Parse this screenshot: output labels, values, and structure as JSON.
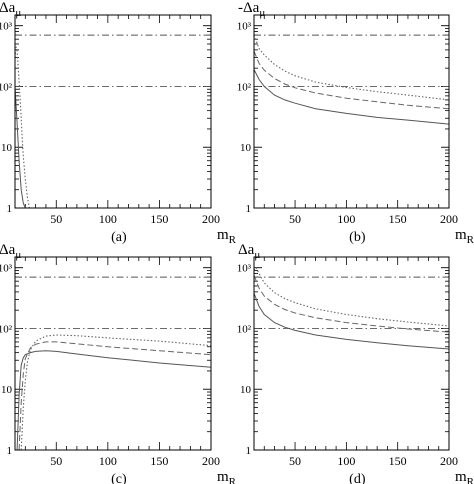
{
  "chart_data": [
    {
      "panel": "(a)",
      "type": "line",
      "ylabel": "Δaμ",
      "xlabel": "mR",
      "xlim": [
        10,
        200
      ],
      "ylim": [
        1,
        1500
      ],
      "yscale": "log",
      "xticks": [
        50,
        100,
        150,
        200
      ],
      "ytick_labels": [
        "1",
        "10",
        "10²",
        "10³"
      ],
      "hlines": [
        100,
        700
      ],
      "series": [
        {
          "style": "solid",
          "x": [
            10,
            12,
            14,
            16,
            18,
            20
          ],
          "y": [
            100,
            25,
            6,
            2,
            1.2,
            1
          ]
        },
        {
          "style": "dotted",
          "x": [
            10,
            11,
            12,
            13,
            14,
            15,
            16,
            17,
            18,
            20,
            22,
            24
          ],
          "y": [
            300,
            450,
            380,
            220,
            120,
            60,
            30,
            14,
            7,
            3,
            1.5,
            1
          ]
        }
      ]
    },
    {
      "panel": "(b)",
      "type": "line",
      "ylabel": "-Δaμ",
      "xlabel": "mR",
      "xlim": [
        10,
        200
      ],
      "ylim": [
        1,
        1500
      ],
      "yscale": "log",
      "xticks": [
        50,
        100,
        150,
        200
      ],
      "ytick_labels": [
        "1",
        "10",
        "10²",
        "10³"
      ],
      "hlines": [
        100,
        700
      ],
      "series": [
        {
          "style": "solid",
          "x": [
            10,
            15,
            20,
            30,
            40,
            50,
            70,
            100,
            130,
            160,
            200
          ],
          "y": [
            190,
            130,
            100,
            72,
            60,
            53,
            43,
            36,
            31,
            28,
            24
          ]
        },
        {
          "style": "dashed",
          "x": [
            10,
            15,
            20,
            30,
            40,
            50,
            70,
            100,
            130,
            160,
            200
          ],
          "y": [
            380,
            240,
            185,
            135,
            110,
            95,
            78,
            64,
            56,
            49,
            43
          ]
        },
        {
          "style": "dotted",
          "x": [
            10,
            15,
            20,
            30,
            40,
            50,
            70,
            100,
            130,
            160,
            200
          ],
          "y": [
            700,
            420,
            330,
            230,
            180,
            150,
            118,
            96,
            82,
            72,
            60
          ]
        }
      ]
    },
    {
      "panel": "(c)",
      "type": "line",
      "ylabel": "Δaμ",
      "xlabel": "mR",
      "xlim": [
        10,
        200
      ],
      "ylim": [
        1,
        1500
      ],
      "yscale": "log",
      "xticks": [
        50,
        100,
        150,
        200
      ],
      "ytick_labels": [
        "1",
        "10",
        "10²",
        "10³"
      ],
      "hlines": [
        100,
        700
      ],
      "series": [
        {
          "style": "solid",
          "x": [
            12,
            14,
            16,
            18,
            20,
            25,
            30,
            40,
            50,
            70,
            100,
            150,
            200
          ],
          "y": [
            1,
            8,
            25,
            33,
            37,
            40,
            42,
            43,
            42,
            38,
            33,
            27,
            23
          ]
        },
        {
          "style": "dashed",
          "x": [
            14,
            16,
            18,
            20,
            25,
            30,
            40,
            50,
            70,
            100,
            150,
            200
          ],
          "y": [
            1,
            6,
            18,
            32,
            48,
            55,
            60,
            60,
            56,
            50,
            43,
            37
          ]
        },
        {
          "style": "dotted",
          "x": [
            16,
            18,
            20,
            22,
            25,
            30,
            40,
            50,
            70,
            100,
            150,
            200
          ],
          "y": [
            1,
            5,
            14,
            28,
            45,
            62,
            75,
            78,
            76,
            70,
            62,
            52
          ]
        }
      ]
    },
    {
      "panel": "(d)",
      "type": "line",
      "ylabel": "Δaμ",
      "xlabel": "mR",
      "xlim": [
        10,
        200
      ],
      "ylim": [
        1,
        1500
      ],
      "yscale": "log",
      "xticks": [
        50,
        100,
        150,
        200
      ],
      "ytick_labels": [
        "1",
        "10",
        "10²",
        "10³"
      ],
      "hlines": [
        100,
        700
      ],
      "series": [
        {
          "style": "solid",
          "x": [
            10,
            15,
            20,
            30,
            40,
            50,
            70,
            100,
            130,
            160,
            200
          ],
          "y": [
            380,
            230,
            170,
            125,
            105,
            93,
            78,
            66,
            58,
            52,
            46
          ]
        },
        {
          "style": "dashed",
          "x": [
            10,
            15,
            20,
            30,
            40,
            50,
            70,
            100,
            130,
            160,
            200
          ],
          "y": [
            750,
            460,
            340,
            250,
            205,
            180,
            150,
            125,
            110,
            98,
            87
          ]
        },
        {
          "style": "dotted",
          "x": [
            10,
            12,
            15,
            20,
            30,
            40,
            50,
            70,
            100,
            130,
            160,
            200
          ],
          "y": [
            900,
            1000,
            800,
            560,
            390,
            310,
            265,
            210,
            170,
            145,
            128,
            110
          ]
        }
      ]
    }
  ]
}
